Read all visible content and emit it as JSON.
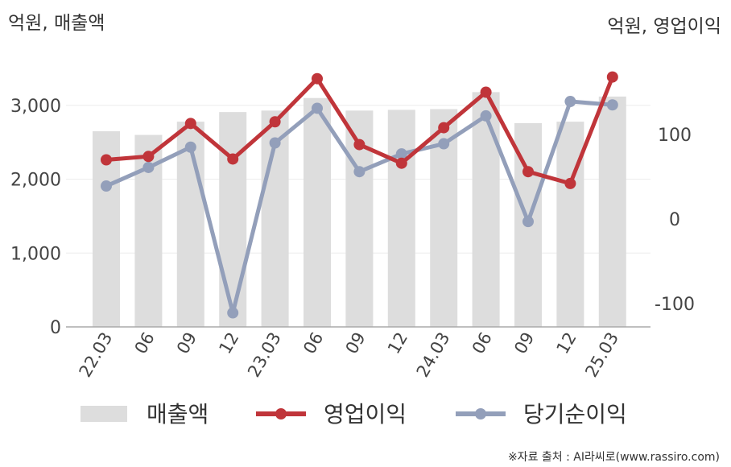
{
  "chart_data": {
    "type": "bar+line",
    "left_unit": "억원, 매출액",
    "right_unit": "억원, 영업이익",
    "categories": [
      "22.03",
      "06",
      "09",
      "12",
      "23.03",
      "06",
      "09",
      "12",
      "24.03",
      "06",
      "09",
      "12",
      "25.03"
    ],
    "left_axis": {
      "ylim": [
        0,
        3500
      ],
      "ticks": [
        "0",
        "1,000",
        "2,000",
        "3,000"
      ]
    },
    "right_axis": {
      "ylim": [
        -170,
        245
      ],
      "ticks": [
        "-100",
        "0",
        "100"
      ]
    },
    "series": [
      {
        "name": "매출액",
        "type": "bar",
        "axis": "left",
        "color": "#dddddd",
        "values": [
          2650,
          2600,
          2780,
          2910,
          2930,
          3100,
          2930,
          2940,
          2950,
          3180,
          2760,
          2780,
          3120
        ]
      },
      {
        "name": "영업이익",
        "type": "line",
        "axis": "right",
        "color": "#c0353a",
        "values": [
          70,
          74,
          113,
          71,
          115,
          166,
          88,
          66,
          108,
          150,
          56,
          42,
          168
        ]
      },
      {
        "name": "당기순이익",
        "type": "line",
        "axis": "right",
        "color": "#939fba",
        "values": [
          39,
          61,
          85,
          -111,
          90,
          131,
          56,
          77,
          89,
          122,
          -3,
          139,
          135
        ]
      }
    ],
    "grid": true,
    "legend": "bottom"
  },
  "source": "※자료 출처 : AI라씨로(www.rassiro.com)"
}
